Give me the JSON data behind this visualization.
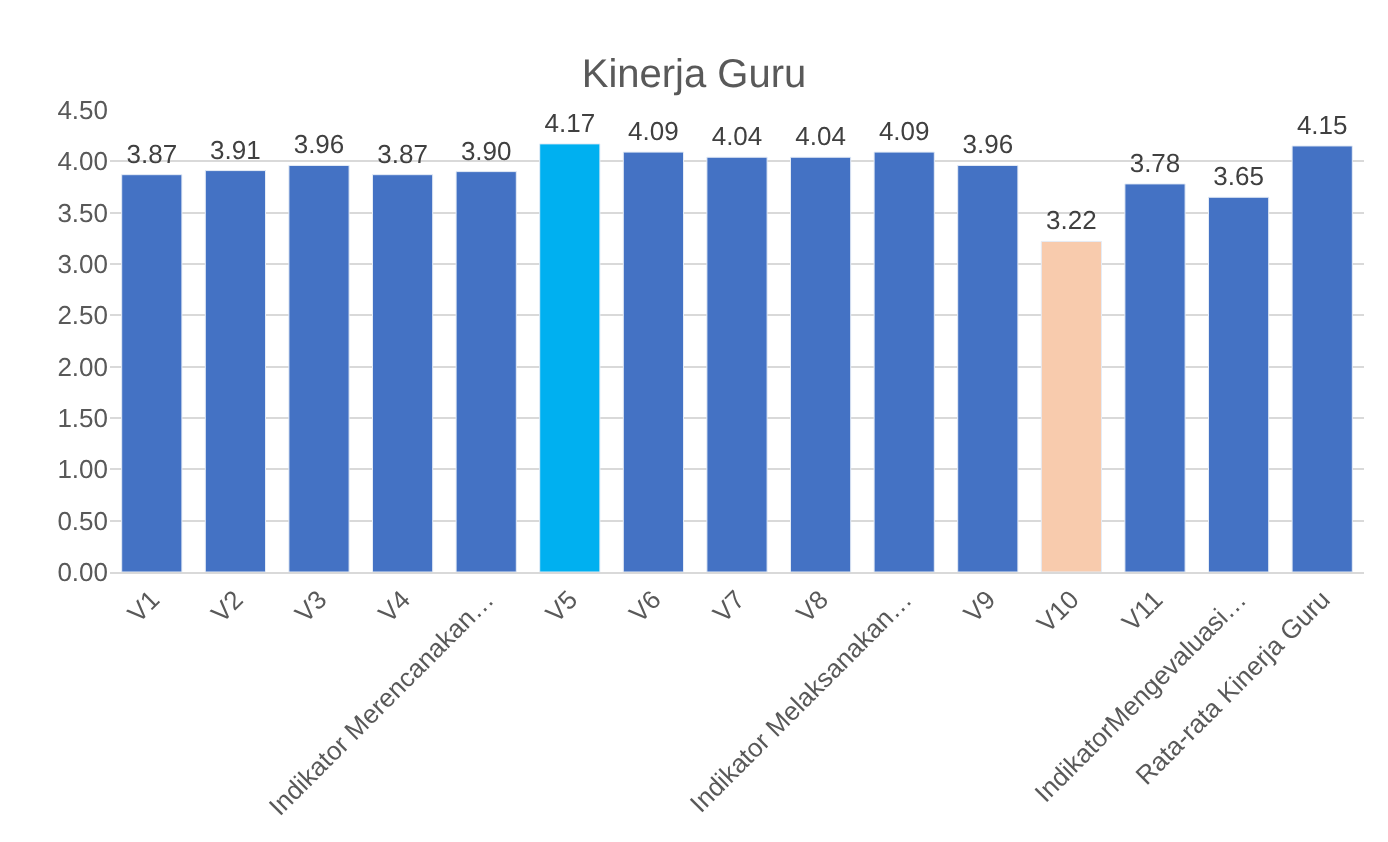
{
  "chart_data": {
    "type": "bar",
    "title": "Kinerja Guru",
    "categories": [
      "V1",
      "V2",
      "V3",
      "V4",
      "Indikator Merencanakan…",
      "V5",
      "V6",
      "V7",
      "V8",
      "Indikator Melaksanakan…",
      "V9",
      "V10",
      "V11",
      "IndikatorMengevaluasi…",
      "Rata-rata Kinerja Guru"
    ],
    "values": [
      3.87,
      3.91,
      3.96,
      3.87,
      3.9,
      4.17,
      4.09,
      4.04,
      4.04,
      4.09,
      3.96,
      3.22,
      3.78,
      3.65,
      4.15
    ],
    "value_labels": [
      "3.87",
      "3.91",
      "3.96",
      "3.87",
      "3.90",
      "4.17",
      "4.09",
      "4.04",
      "4.04",
      "4.09",
      "3.96",
      "3.22",
      "3.78",
      "3.65",
      "4.15"
    ],
    "colors": [
      "#4472c4",
      "#4472c4",
      "#4472c4",
      "#4472c4",
      "#4472c4",
      "#00b0f0",
      "#4472c4",
      "#4472c4",
      "#4472c4",
      "#4472c4",
      "#4472c4",
      "#f8cbad",
      "#4472c4",
      "#4472c4",
      "#4472c4"
    ],
    "ylim": [
      0,
      4.5
    ],
    "yticks": [
      {
        "value": 0,
        "label": "0.00"
      },
      {
        "value": 0.5,
        "label": "0.50"
      },
      {
        "value": 1,
        "label": "1.00"
      },
      {
        "value": 1.5,
        "label": "1.50"
      },
      {
        "value": 2,
        "label": "2.00"
      },
      {
        "value": 2.5,
        "label": "2.50"
      },
      {
        "value": 3,
        "label": "3.00"
      },
      {
        "value": 3.5,
        "label": "3.50"
      },
      {
        "value": 4,
        "label": "4.00"
      },
      {
        "value": 4.5,
        "label": "4.50"
      }
    ],
    "grid": "y",
    "legend": false
  }
}
